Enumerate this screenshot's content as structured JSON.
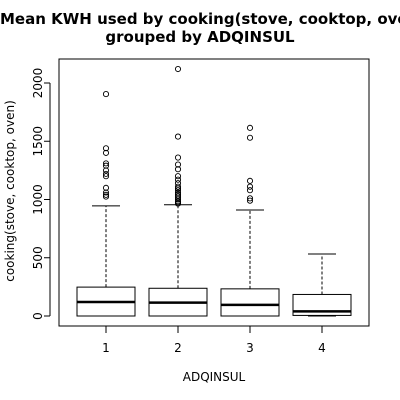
{
  "chart_data": {
    "type": "boxplot",
    "title_lines": [
      "Mean KWH used by cooking(stove, cooktop, oven)",
      "grouped by ADQINSUL"
    ],
    "xlabel": "ADQINSUL",
    "ylabel": "cooking(stove, cooktop, oven)",
    "categories": [
      "1",
      "2",
      "3",
      "4"
    ],
    "ylim": [
      -80,
      2200
    ],
    "yticks": [
      0,
      500,
      1000,
      1500,
      2000
    ],
    "grid": false,
    "boxes": [
      {
        "category": "1",
        "whisker_low": 0,
        "q1": 0,
        "median": 120,
        "q3": 248,
        "whisker_high": 945,
        "outliers": [
          1025,
          1040,
          1060,
          1100,
          1200,
          1220,
          1250,
          1290,
          1310,
          1400,
          1440,
          1905
        ]
      },
      {
        "category": "2",
        "whisker_low": 0,
        "q1": 0,
        "median": 115,
        "q3": 238,
        "whisker_high": 955,
        "outliers": [
          965,
          975,
          985,
          1000,
          1015,
          1030,
          1045,
          1060,
          1080,
          1095,
          1110,
          1140,
          1170,
          1200,
          1260,
          1300,
          1360,
          1540,
          2120
        ]
      },
      {
        "category": "3",
        "whisker_low": 0,
        "q1": 0,
        "median": 95,
        "q3": 233,
        "whisker_high": 910,
        "outliers": [
          990,
          1010,
          1080,
          1110,
          1160,
          1530,
          1615
        ]
      },
      {
        "category": "4",
        "whisker_low": 0,
        "q1": 5,
        "median": 40,
        "q3": 185,
        "whisker_high": 532,
        "outliers": []
      }
    ]
  }
}
